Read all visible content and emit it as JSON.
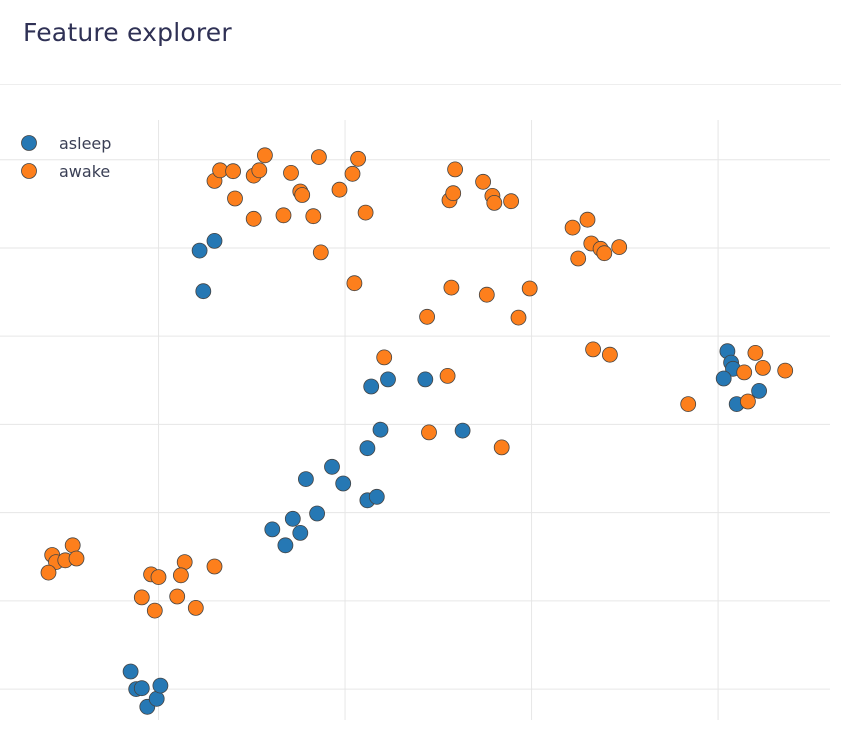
{
  "page": {
    "title": "Feature explorer"
  },
  "colors": {
    "asleep": "#2678b4",
    "awake": "#fd7f1c",
    "grid": "#e6e6e6",
    "marker_edge": "#444444"
  },
  "chart_data": {
    "type": "scatter",
    "title": "Feature explorer",
    "xlabel": "",
    "ylabel": "",
    "xlim": [
      -0.85,
      3.6
    ],
    "ylim": [
      -1.35,
      5.45
    ],
    "grid": true,
    "legend": "top-left",
    "series": [
      {
        "name": "asleep",
        "color": "#2678b4",
        "points": [
          [
            0.22,
            3.97
          ],
          [
            0.3,
            4.08
          ],
          [
            0.24,
            3.51
          ],
          [
            1.23,
            2.51
          ],
          [
            1.43,
            2.51
          ],
          [
            1.14,
            2.43
          ],
          [
            1.63,
            1.93
          ],
          [
            1.19,
            1.94
          ],
          [
            1.12,
            1.73
          ],
          [
            0.93,
            1.52
          ],
          [
            0.79,
            1.38
          ],
          [
            0.99,
            1.33
          ],
          [
            1.12,
            1.14
          ],
          [
            1.17,
            1.18
          ],
          [
            0.72,
            0.93
          ],
          [
            0.76,
            0.77
          ],
          [
            0.85,
            0.99
          ],
          [
            0.61,
            0.81
          ],
          [
            0.68,
            0.63
          ],
          [
            -0.15,
            -0.8
          ],
          [
            -0.12,
            -1.0
          ],
          [
            -0.09,
            -0.99
          ],
          [
            -0.06,
            -1.2
          ],
          [
            -0.01,
            -1.11
          ],
          [
            0.01,
            -0.96
          ],
          [
            3.05,
            2.83
          ],
          [
            3.07,
            2.7
          ],
          [
            3.08,
            2.63
          ],
          [
            3.03,
            2.52
          ],
          [
            3.1,
            2.23
          ],
          [
            3.22,
            2.38
          ]
        ]
      },
      {
        "name": "awake",
        "color": "#fd7f1c",
        "points": [
          [
            0.3,
            4.76
          ],
          [
            0.33,
            4.88
          ],
          [
            0.4,
            4.87
          ],
          [
            0.41,
            4.56
          ],
          [
            0.51,
            4.33
          ],
          [
            0.51,
            4.82
          ],
          [
            0.54,
            4.88
          ],
          [
            0.57,
            5.05
          ],
          [
            0.67,
            4.37
          ],
          [
            0.71,
            4.85
          ],
          [
            0.76,
            4.64
          ],
          [
            0.77,
            4.6
          ],
          [
            0.83,
            4.36
          ],
          [
            0.86,
            5.03
          ],
          [
            0.87,
            3.95
          ],
          [
            0.97,
            4.66
          ],
          [
            1.04,
            4.84
          ],
          [
            1.07,
            5.01
          ],
          [
            1.11,
            4.4
          ],
          [
            1.05,
            3.6
          ],
          [
            1.59,
            4.89
          ],
          [
            1.56,
            4.54
          ],
          [
            1.58,
            4.62
          ],
          [
            1.74,
            4.75
          ],
          [
            1.79,
            4.59
          ],
          [
            1.8,
            4.51
          ],
          [
            1.89,
            4.53
          ],
          [
            2.22,
            4.23
          ],
          [
            2.3,
            4.32
          ],
          [
            2.32,
            4.05
          ],
          [
            2.25,
            3.88
          ],
          [
            2.37,
            3.99
          ],
          [
            2.39,
            3.94
          ],
          [
            2.47,
            4.01
          ],
          [
            1.57,
            3.55
          ],
          [
            1.44,
            3.22
          ],
          [
            1.76,
            3.47
          ],
          [
            1.99,
            3.54
          ],
          [
            1.93,
            3.21
          ],
          [
            1.21,
            2.76
          ],
          [
            1.55,
            2.55
          ],
          [
            1.45,
            1.91
          ],
          [
            1.84,
            1.74
          ],
          [
            2.33,
            2.85
          ],
          [
            2.42,
            2.79
          ],
          [
            2.84,
            2.23
          ],
          [
            3.2,
            2.81
          ],
          [
            3.14,
            2.59
          ],
          [
            3.24,
            2.64
          ],
          [
            3.36,
            2.61
          ],
          [
            3.16,
            2.26
          ],
          [
            -0.57,
            0.52
          ],
          [
            -0.55,
            0.44
          ],
          [
            -0.5,
            0.46
          ],
          [
            -0.46,
            0.63
          ],
          [
            -0.44,
            0.48
          ],
          [
            -0.59,
            0.32
          ],
          [
            -0.04,
            0.3
          ],
          [
            0.0,
            0.27
          ],
          [
            0.14,
            0.44
          ],
          [
            0.12,
            0.29
          ],
          [
            0.3,
            0.39
          ],
          [
            -0.09,
            0.04
          ],
          [
            0.1,
            0.05
          ],
          [
            0.2,
            -0.08
          ],
          [
            -0.02,
            -0.11
          ]
        ]
      }
    ]
  }
}
